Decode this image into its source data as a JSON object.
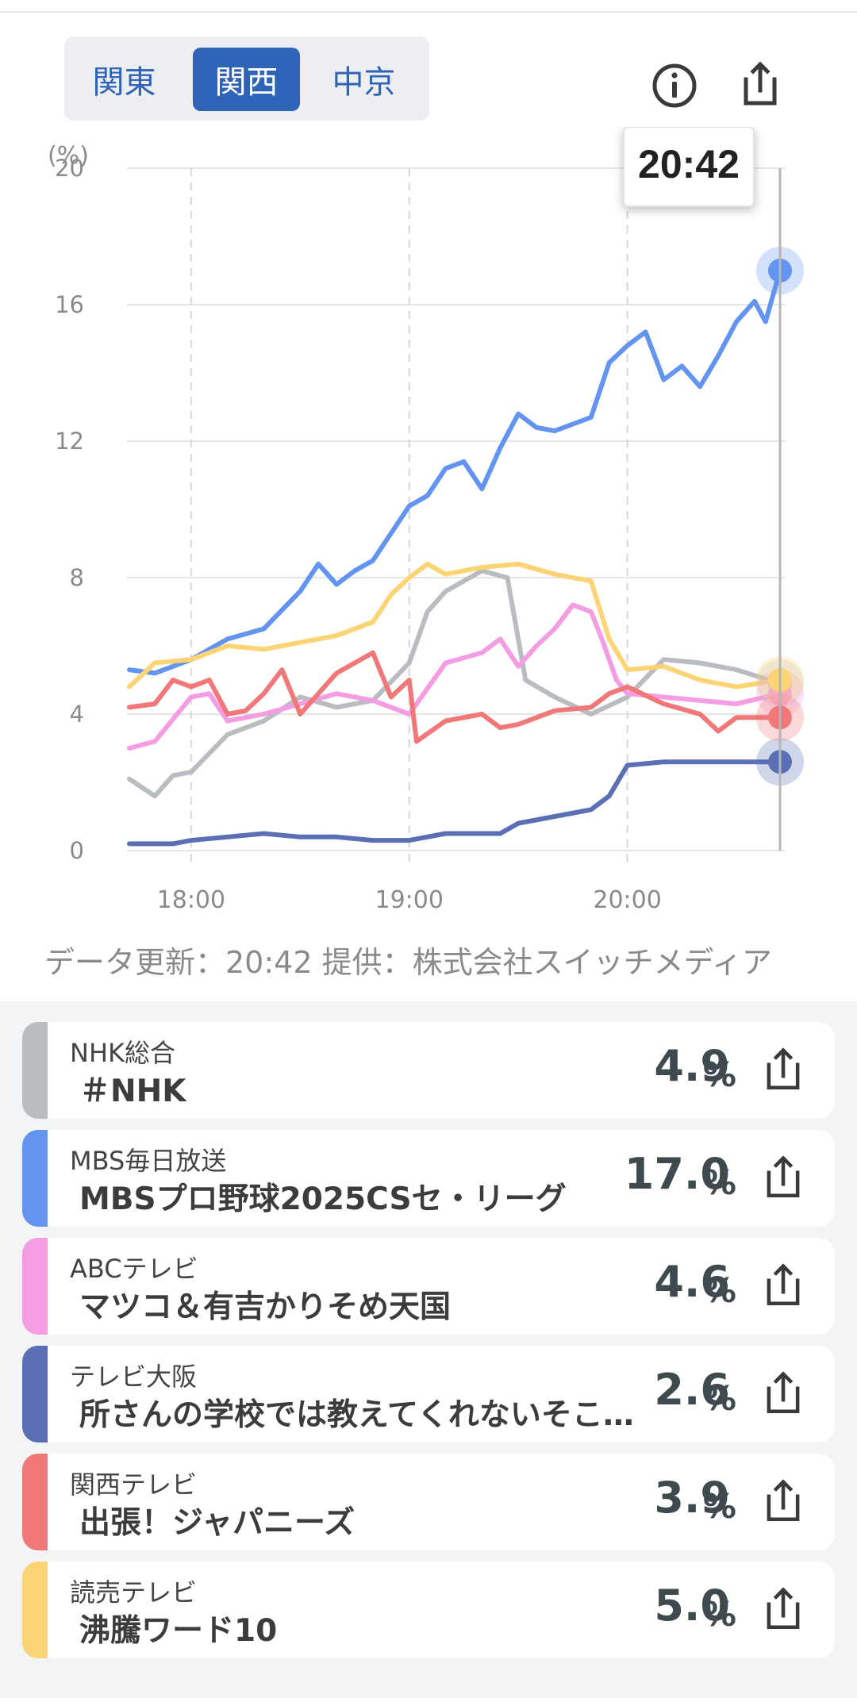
{
  "region_tabs": {
    "items": [
      {
        "label": "関東"
      },
      {
        "label": "関西"
      },
      {
        "label": "中京"
      }
    ],
    "selected": "関西"
  },
  "header_icons": [
    "info-icon",
    "share-icon"
  ],
  "chart_data": {
    "type": "line",
    "ylabel": "(%)",
    "ylim": [
      0,
      20
    ],
    "yticks": [
      "0",
      "4",
      "8",
      "12",
      "16",
      "20"
    ],
    "xticks": [
      "18:00",
      "19:00",
      "20:00"
    ],
    "tooltip_time": "20:42",
    "series": [
      {
        "color": "#b9bdc2",
        "x": [
          "17:43",
          "17:50",
          "17:55",
          "18:00",
          "18:10",
          "18:20",
          "18:30",
          "18:40",
          "18:50",
          "19:00",
          "19:05",
          "19:10",
          "19:20",
          "19:27",
          "19:32",
          "19:40",
          "19:50",
          "20:00",
          "20:10",
          "20:20",
          "20:30",
          "20:42"
        ],
        "values": [
          2.1,
          1.6,
          2.2,
          2.3,
          3.4,
          3.8,
          4.5,
          4.2,
          4.4,
          5.5,
          7.0,
          7.6,
          8.2,
          8.0,
          5.0,
          4.5,
          4.0,
          4.5,
          5.6,
          5.5,
          5.3,
          4.9
        ]
      },
      {
        "color": "#6394f2",
        "x": [
          "17:43",
          "17:50",
          "18:00",
          "18:10",
          "18:20",
          "18:30",
          "18:35",
          "18:40",
          "18:45",
          "18:50",
          "18:55",
          "19:00",
          "19:05",
          "19:10",
          "19:15",
          "19:20",
          "19:25",
          "19:30",
          "19:35",
          "19:40",
          "19:45",
          "19:50",
          "19:55",
          "20:00",
          "20:05",
          "20:10",
          "20:15",
          "20:20",
          "20:25",
          "20:30",
          "20:35",
          "20:38",
          "20:42"
        ],
        "values": [
          5.3,
          5.2,
          5.6,
          6.2,
          6.5,
          7.6,
          8.4,
          7.8,
          8.2,
          8.5,
          9.3,
          10.1,
          10.4,
          11.2,
          11.4,
          10.6,
          11.8,
          12.8,
          12.4,
          12.3,
          12.5,
          12.7,
          14.3,
          14.8,
          15.2,
          13.8,
          14.2,
          13.6,
          14.5,
          15.5,
          16.1,
          15.5,
          17.0
        ]
      },
      {
        "color": "#f59de3",
        "x": [
          "17:43",
          "17:50",
          "18:00",
          "18:05",
          "18:10",
          "18:20",
          "18:30",
          "18:40",
          "18:50",
          "19:00",
          "19:10",
          "19:20",
          "19:25",
          "19:30",
          "19:35",
          "19:40",
          "19:45",
          "19:50",
          "19:53",
          "19:57",
          "20:00",
          "20:10",
          "20:20",
          "20:30",
          "20:42"
        ],
        "values": [
          3.0,
          3.2,
          4.5,
          4.6,
          3.8,
          4.0,
          4.3,
          4.6,
          4.4,
          4.0,
          5.5,
          5.8,
          6.2,
          5.4,
          6.0,
          6.5,
          7.2,
          7.0,
          6.2,
          5.0,
          4.6,
          4.5,
          4.4,
          4.3,
          4.6
        ]
      },
      {
        "color": "#5b6fb5",
        "x": [
          "17:43",
          "17:55",
          "18:00",
          "18:10",
          "18:20",
          "18:30",
          "18:40",
          "18:50",
          "19:00",
          "19:10",
          "19:20",
          "19:25",
          "19:30",
          "19:40",
          "19:50",
          "19:55",
          "20:00",
          "20:10",
          "20:20",
          "20:30",
          "20:42"
        ],
        "values": [
          0.2,
          0.2,
          0.3,
          0.4,
          0.5,
          0.4,
          0.4,
          0.3,
          0.3,
          0.5,
          0.5,
          0.5,
          0.8,
          1.0,
          1.2,
          1.6,
          2.5,
          2.6,
          2.6,
          2.6,
          2.6
        ]
      },
      {
        "color": "#f07878",
        "x": [
          "17:43",
          "17:50",
          "17:55",
          "18:00",
          "18:05",
          "18:10",
          "18:15",
          "18:20",
          "18:25",
          "18:30",
          "18:40",
          "18:50",
          "18:55",
          "19:00",
          "19:02",
          "19:10",
          "19:20",
          "19:25",
          "19:30",
          "19:40",
          "19:50",
          "19:55",
          "20:00",
          "20:10",
          "20:20",
          "20:25",
          "20:30",
          "20:42"
        ],
        "values": [
          4.2,
          4.3,
          5.0,
          4.8,
          5.0,
          4.0,
          4.1,
          4.6,
          5.3,
          4.0,
          5.2,
          5.8,
          4.5,
          5.0,
          3.2,
          3.8,
          4.0,
          3.6,
          3.7,
          4.1,
          4.2,
          4.6,
          4.8,
          4.3,
          4.0,
          3.5,
          3.9,
          3.9
        ]
      },
      {
        "color": "#fdd475",
        "x": [
          "17:43",
          "17:50",
          "18:00",
          "18:10",
          "18:20",
          "18:30",
          "18:40",
          "18:50",
          "18:55",
          "19:00",
          "19:05",
          "19:10",
          "19:20",
          "19:30",
          "19:40",
          "19:50",
          "19:55",
          "20:00",
          "20:10",
          "20:20",
          "20:30",
          "20:42"
        ],
        "values": [
          4.8,
          5.5,
          5.6,
          6.0,
          5.9,
          6.1,
          6.3,
          6.7,
          7.5,
          8.0,
          8.4,
          8.1,
          8.3,
          8.4,
          8.1,
          7.9,
          6.2,
          5.3,
          5.4,
          5.0,
          4.8,
          5.0
        ]
      }
    ]
  },
  "footnote": "データ更新：20:42  提供：株式会社スイッチメディア",
  "programs": [
    {
      "station": "NHK総合",
      "program": "＃NHK",
      "rating": "4.9",
      "unit": "%",
      "color": "#b9bdc2"
    },
    {
      "station": "MBS毎日放送",
      "program": "MBSプロ野球2025CSセ・リーグ",
      "rating": "17.0",
      "unit": "%",
      "color": "#6394f2"
    },
    {
      "station": "ABCテレビ",
      "program": "マツコ＆有吉かりそめ天国",
      "rating": "4.6",
      "unit": "%",
      "color": "#f59de3"
    },
    {
      "station": "テレビ大阪",
      "program": "所さんの学校では教えてくれないそこんトコロ！",
      "rating": "2.6",
      "unit": "%",
      "color": "#5b6fb5"
    },
    {
      "station": "関西テレビ",
      "program": "出張！ジャパニーズ",
      "rating": "3.9",
      "unit": "%",
      "color": "#f07878"
    },
    {
      "station": "読売テレビ",
      "program": "沸騰ワード10",
      "rating": "5.0",
      "unit": "%",
      "color": "#fdd475"
    }
  ]
}
